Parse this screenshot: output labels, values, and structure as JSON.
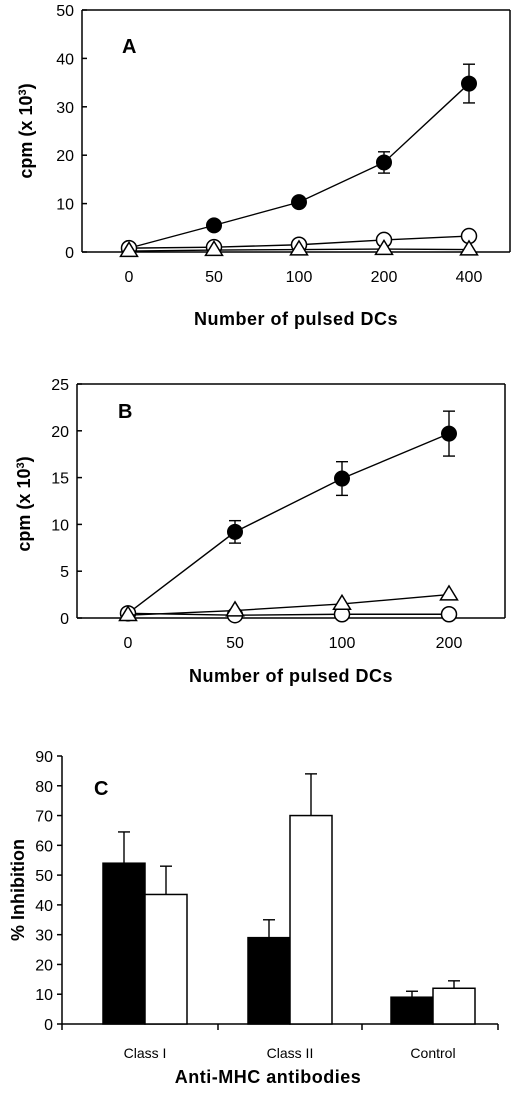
{
  "chart_data": [
    {
      "type": "line",
      "panel_label": "A",
      "categories": [
        "0",
        "50",
        "100",
        "200",
        "400"
      ],
      "ylim": [
        0,
        50
      ],
      "yticks": [
        "0",
        "10",
        "20",
        "30",
        "40",
        "50"
      ],
      "ylabel": "cpm (x 10",
      "ylabel_sup": "3",
      "ylabel_end": ")",
      "xlabel": "Number of pulsed DCs",
      "series": [
        {
          "marker": "filled-circle",
          "values": [
            0.8,
            5.5,
            10.3,
            18.5,
            34.8
          ],
          "errors": [
            0,
            0.5,
            0.8,
            2.2,
            4.0
          ]
        },
        {
          "marker": "open-circle",
          "values": [
            0.8,
            1.0,
            1.5,
            2.5,
            3.3
          ],
          "errors": [
            0,
            0,
            0,
            0,
            0
          ]
        },
        {
          "marker": "open-triangle",
          "values": [
            0.2,
            0.4,
            0.5,
            0.6,
            0.5
          ],
          "errors": [
            0,
            0,
            0,
            0,
            0
          ]
        }
      ]
    },
    {
      "type": "line",
      "panel_label": "B",
      "categories": [
        "0",
        "50",
        "100",
        "200"
      ],
      "ylim": [
        0,
        25
      ],
      "yticks": [
        "0",
        "5",
        "10",
        "15",
        "20",
        "25"
      ],
      "ylabel": "cpm (x 10",
      "ylabel_sup": "3",
      "ylabel_end": ")",
      "xlabel": "Number of pulsed DCs",
      "series": [
        {
          "marker": "filled-circle",
          "values": [
            0.5,
            9.2,
            14.9,
            19.7
          ],
          "errors": [
            0,
            1.2,
            1.8,
            2.4
          ]
        },
        {
          "marker": "open-circle",
          "values": [
            0.5,
            0.3,
            0.4,
            0.4
          ],
          "errors": [
            0,
            0,
            0,
            0
          ]
        },
        {
          "marker": "open-triangle",
          "values": [
            0.3,
            0.8,
            1.5,
            2.5
          ],
          "errors": [
            0,
            0,
            0,
            0
          ]
        }
      ]
    },
    {
      "type": "bar",
      "panel_label": "C",
      "categories": [
        "Class I",
        "Class II",
        "Control"
      ],
      "ylim": [
        0,
        90
      ],
      "yticks": [
        "0",
        "10",
        "20",
        "30",
        "40",
        "50",
        "60",
        "70",
        "80",
        "90"
      ],
      "ylabel": "% Inhibition",
      "xlabel": "Anti-MHC antibodies",
      "series": [
        {
          "fill": "#000000",
          "values": [
            54,
            29,
            9
          ],
          "errors": [
            10.5,
            6,
            2
          ]
        },
        {
          "fill": "#ffffff",
          "values": [
            43.5,
            70,
            12
          ],
          "errors": [
            9.5,
            14,
            2.5
          ]
        }
      ]
    }
  ]
}
